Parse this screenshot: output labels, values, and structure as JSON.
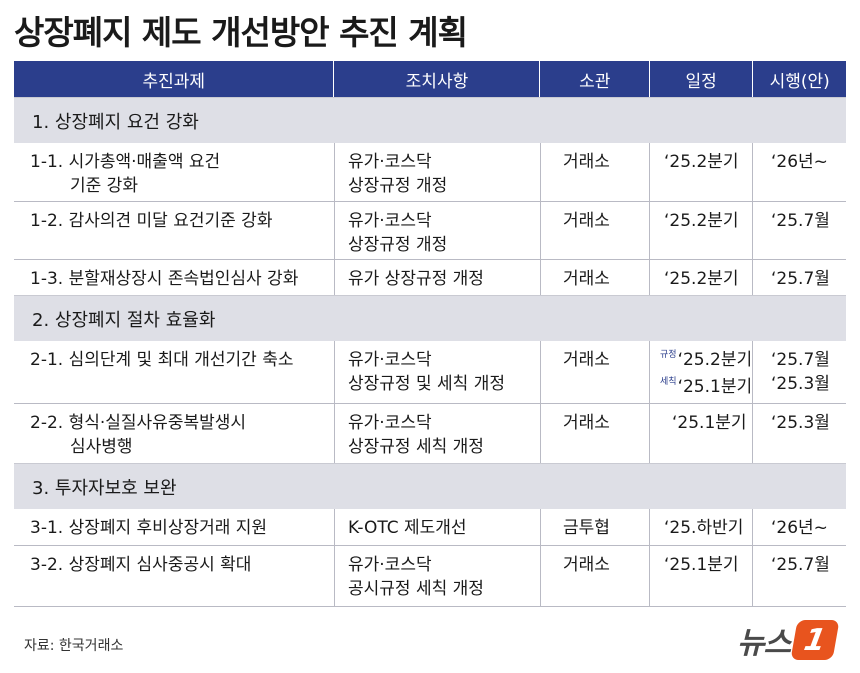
{
  "title": "상장폐지 제도 개선방안 추진 계획",
  "headers": [
    "추진과제",
    "조치사항",
    "소관",
    "일정",
    "시행(안)"
  ],
  "sections": [
    {
      "label": "1. 상장폐지 요건 강화",
      "rows": [
        {
          "task": [
            "1-1. 시가총액·매출액 요건",
            "기준 강화"
          ],
          "action": [
            "유가·코스닥",
            "상장규정 개정"
          ],
          "owner": "거래소",
          "schedule": [
            "‘25.2분기"
          ],
          "effective": [
            "‘26년~"
          ]
        },
        {
          "task": [
            "1-2. 감사의견 미달 요건기준 강화"
          ],
          "action": [
            "유가·코스닥",
            "상장규정 개정"
          ],
          "owner": "거래소",
          "schedule": [
            "‘25.2분기"
          ],
          "effective": [
            "‘25.7월"
          ]
        },
        {
          "task": [
            "1-3. 분할재상장시 존속법인심사 강화"
          ],
          "action": [
            "유가 상장규정 개정"
          ],
          "owner": "거래소",
          "schedule": [
            "‘25.2분기"
          ],
          "effective": [
            "‘25.7월"
          ]
        }
      ]
    },
    {
      "label": "2. 상장폐지 절차 효율화",
      "rows": [
        {
          "task": [
            "2-1. 심의단계 및 최대 개선기간 축소"
          ],
          "action": [
            "유가·코스닥",
            "상장규정 및 세칙 개정"
          ],
          "owner": "거래소",
          "schedule": [
            "‘25.2분기",
            "‘25.1분기"
          ],
          "schedule_tags": [
            "규정",
            "세칙"
          ],
          "effective": [
            "‘25.7월",
            "‘25.3월"
          ]
        },
        {
          "task": [
            "2-2. 형식·실질사유중복발생시",
            "심사병행"
          ],
          "action": [
            "유가·코스닥",
            "상장규정 세칙 개정"
          ],
          "owner": "거래소",
          "schedule": [
            "‘25.1분기"
          ],
          "effective": [
            "‘25.3월"
          ]
        }
      ]
    },
    {
      "label": "3. 투자자보호 보완",
      "rows": [
        {
          "task": [
            "3-1. 상장폐지 후비상장거래 지원"
          ],
          "action": [
            "K-OTC 제도개선"
          ],
          "owner": "금투협",
          "schedule": [
            "‘25.하반기"
          ],
          "effective": [
            "‘26년~"
          ]
        },
        {
          "task": [
            "3-2. 상장폐지 심사중공시 확대"
          ],
          "action": [
            "유가·코스닥",
            "공시규정 세칙 개정"
          ],
          "owner": "거래소",
          "schedule": [
            "‘25.1분기"
          ],
          "effective": [
            "‘25.7월"
          ]
        }
      ]
    }
  ],
  "source": "자료: 한국거래소",
  "logo": {
    "text": "뉴스",
    "mark": "1",
    "color": "#e8541e"
  }
}
